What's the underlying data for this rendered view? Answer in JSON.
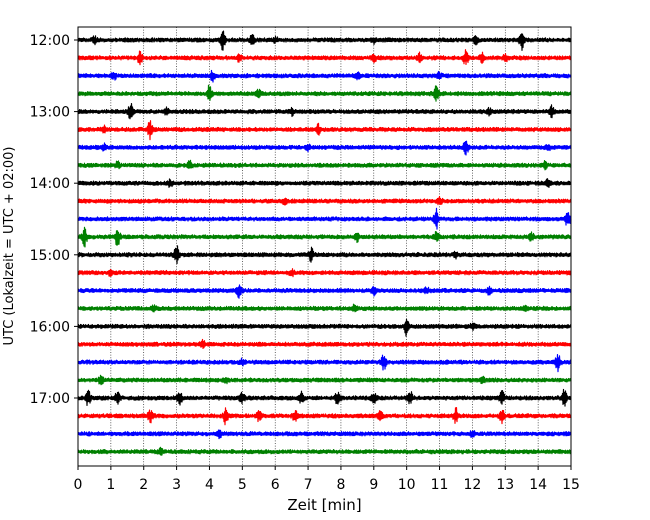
{
  "chart_data": {
    "type": "line",
    "title": "",
    "xlabel": "Zeit  [min]",
    "ylabel": "UTC (Lokalzeit = UTC + 02:00)",
    "xlim": [
      0,
      15
    ],
    "x_ticks": [
      "0",
      "1",
      "2",
      "3",
      "4",
      "5",
      "6",
      "7",
      "8",
      "9",
      "10",
      "11",
      "12",
      "13",
      "14",
      "15"
    ],
    "y_ticks": [
      "12:00",
      "13:00",
      "14:00",
      "15:00",
      "16:00",
      "17:00"
    ],
    "grid": "vertical dotted lines at each minute",
    "legend": "none",
    "trace_interval_minutes": 15,
    "color_cycle": [
      "#000000",
      "#ff0000",
      "#0000ff",
      "#008000"
    ],
    "traces": [
      {
        "start": "12:00",
        "events": [
          [
            0.5,
            3
          ],
          [
            4.4,
            9
          ],
          [
            5.3,
            4
          ],
          [
            6.0,
            3
          ],
          [
            9.0,
            3
          ],
          [
            12.1,
            4
          ],
          [
            13.5,
            9
          ]
        ]
      },
      {
        "start": "12:15",
        "events": [
          [
            1.9,
            7
          ],
          [
            4.9,
            3
          ],
          [
            9.0,
            3
          ],
          [
            10.4,
            4
          ],
          [
            11.8,
            8
          ],
          [
            12.3,
            4
          ],
          [
            13.0,
            3
          ]
        ]
      },
      {
        "start": "12:30",
        "events": [
          [
            1.1,
            3
          ],
          [
            4.1,
            5
          ],
          [
            8.5,
            3
          ],
          [
            11.0,
            3
          ]
        ]
      },
      {
        "start": "12:45",
        "events": [
          [
            4.0,
            8
          ],
          [
            5.5,
            3
          ],
          [
            10.9,
            7
          ]
        ]
      },
      {
        "start": "13:00",
        "events": [
          [
            1.6,
            9
          ],
          [
            2.7,
            4
          ],
          [
            6.5,
            3
          ],
          [
            12.5,
            3
          ],
          [
            14.4,
            5
          ]
        ]
      },
      {
        "start": "13:15",
        "events": [
          [
            0.8,
            3
          ],
          [
            2.2,
            9
          ],
          [
            7.3,
            5
          ]
        ]
      },
      {
        "start": "13:30",
        "events": [
          [
            0.8,
            3
          ],
          [
            7.0,
            3
          ],
          [
            11.8,
            8
          ],
          [
            14.3,
            3
          ]
        ]
      },
      {
        "start": "13:45",
        "events": [
          [
            1.2,
            3
          ],
          [
            3.4,
            4
          ],
          [
            14.2,
            3
          ]
        ]
      },
      {
        "start": "14:00",
        "events": [
          [
            2.8,
            3
          ],
          [
            14.3,
            3
          ]
        ]
      },
      {
        "start": "14:15",
        "events": [
          [
            6.3,
            3
          ],
          [
            11.0,
            3
          ]
        ]
      },
      {
        "start": "14:30",
        "events": [
          [
            10.9,
            9
          ],
          [
            14.9,
            8
          ]
        ]
      },
      {
        "start": "14:45",
        "events": [
          [
            0.2,
            9
          ],
          [
            1.2,
            9
          ],
          [
            8.5,
            4
          ],
          [
            10.9,
            6
          ],
          [
            13.8,
            4
          ]
        ]
      },
      {
        "start": "15:00",
        "events": [
          [
            3.0,
            8
          ],
          [
            7.1,
            6
          ],
          [
            11.5,
            3
          ]
        ]
      },
      {
        "start": "15:15",
        "events": [
          [
            1.0,
            3
          ],
          [
            6.5,
            3
          ]
        ]
      },
      {
        "start": "15:30",
        "events": [
          [
            4.9,
            7
          ],
          [
            9.0,
            4
          ],
          [
            10.6,
            3
          ],
          [
            12.5,
            3
          ]
        ]
      },
      {
        "start": "15:45",
        "events": [
          [
            2.3,
            3
          ],
          [
            8.4,
            3
          ],
          [
            13.6,
            3
          ]
        ]
      },
      {
        "start": "16:00",
        "events": [
          [
            10.0,
            9
          ],
          [
            12.0,
            3
          ]
        ]
      },
      {
        "start": "16:15",
        "events": [
          [
            3.8,
            3
          ]
        ]
      },
      {
        "start": "16:30",
        "events": [
          [
            5.0,
            3
          ],
          [
            9.3,
            7
          ],
          [
            14.6,
            8
          ]
        ]
      },
      {
        "start": "16:45",
        "events": [
          [
            0.7,
            4
          ],
          [
            4.5,
            3
          ],
          [
            12.3,
            3
          ]
        ]
      },
      {
        "start": "17:00",
        "events": [
          [
            0.3,
            8
          ],
          [
            1.2,
            6
          ],
          [
            3.1,
            7
          ],
          [
            5.0,
            5
          ],
          [
            6.8,
            5
          ],
          [
            7.9,
            7
          ],
          [
            9.0,
            6
          ],
          [
            10.1,
            7
          ],
          [
            12.9,
            6
          ],
          [
            14.8,
            8
          ]
        ]
      },
      {
        "start": "17:15",
        "events": [
          [
            2.2,
            6
          ],
          [
            4.5,
            8
          ],
          [
            5.5,
            5
          ],
          [
            6.6,
            5
          ],
          [
            9.2,
            7
          ],
          [
            11.5,
            7
          ],
          [
            12.9,
            6
          ]
        ]
      },
      {
        "start": "17:30",
        "events": [
          [
            4.3,
            3
          ],
          [
            12.0,
            3
          ]
        ]
      },
      {
        "start": "17:45",
        "events": [
          [
            2.5,
            3
          ]
        ]
      }
    ]
  }
}
